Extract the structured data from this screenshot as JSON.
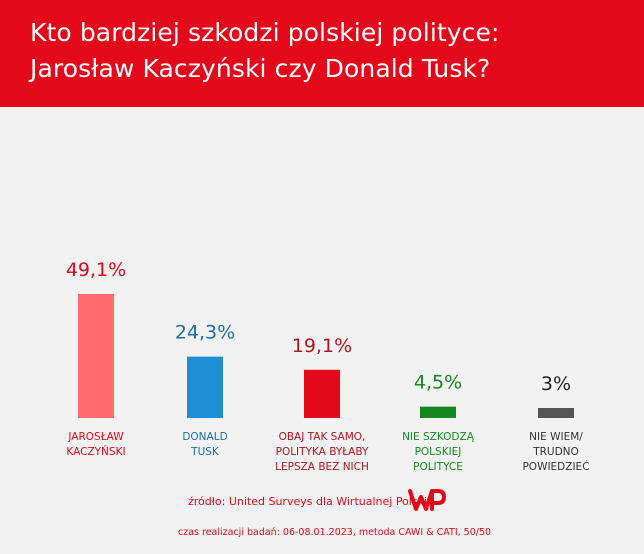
{
  "header": {
    "title_line1": "Kto bardziej szkodzi polskiej polityce:",
    "title_line2": "Jarosław Kaczyński czy Donald Tusk?"
  },
  "chart_data": {
    "type": "bar",
    "categories": [
      [
        "JAROSŁAW",
        "KACZYŃSKI"
      ],
      [
        "DONALD",
        "TUSK"
      ],
      [
        "OBAJ TAK SAMO,",
        "POLITYKA BYŁABY",
        "LEPSZA BEZ NICH"
      ],
      [
        "NIE SZKODZĄ",
        "POLSKIEJ",
        "POLITYCE"
      ],
      [
        "NIE WIEM/",
        "TRUDNO",
        "POWIEDZIEĆ"
      ]
    ],
    "values": [
      49.1,
      24.3,
      19.1,
      4.5,
      3
    ],
    "value_labels": [
      "49,1%",
      "24,3%",
      "19,1%",
      "4,5%",
      "3%"
    ],
    "colors": [
      "#ff6b6f",
      "#1e8fd5",
      "#e3081a",
      "#14881f",
      "#555555"
    ],
    "label_colors": [
      "#e3081a",
      "#1a6fa3",
      "#b0151c",
      "#14881f",
      "#333333"
    ],
    "value_colors": [
      "#e3081a",
      "#1a6fa3",
      "#b0151c",
      "#14881f",
      "#222222"
    ],
    "ylim": [
      0,
      49.1
    ]
  },
  "footer": {
    "source": "źródło: United Surveys dla Wirtualnej Polski",
    "note": "czas realizacji badań: 06-08.01.2023, metoda CAWI & CATI, 50/50",
    "logo_icon": "wp-logo-icon"
  }
}
